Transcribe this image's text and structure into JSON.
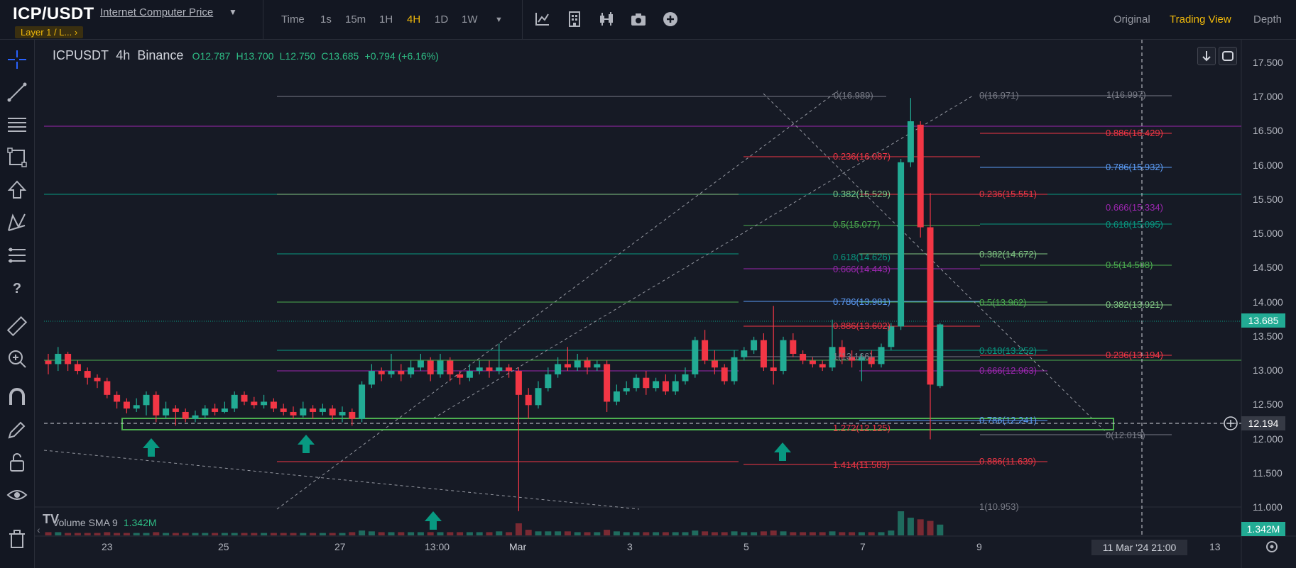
{
  "header": {
    "pair": "ICP/USDT",
    "subtitle": "Internet Computer Price",
    "badge": "Layer 1 / L...",
    "badge_chevron": "›",
    "timeframe_label": "Time",
    "timeframes": [
      "1s",
      "15m",
      "1H",
      "4H",
      "1D",
      "1W"
    ],
    "active_timeframe": "4H",
    "tools": [
      "indicators-icon",
      "templates-icon",
      "chart-type-icon",
      "camera-icon",
      "add-icon"
    ],
    "views": [
      "Original",
      "Trading View",
      "Depth"
    ],
    "active_view": "Trading View"
  },
  "legend": {
    "symbol": "ICPUSDT",
    "interval": "4h",
    "exchange": "Binance",
    "open": "O12.787",
    "high": "H13.700",
    "low": "L12.750",
    "close": "C13.685",
    "change": "+0.794 (+6.16%)"
  },
  "volume": {
    "label": "Volume SMA 9",
    "value": "1.342M"
  },
  "price_axis": {
    "ticks": [
      "17.500",
      "17.000",
      "16.500",
      "16.000",
      "15.500",
      "15.000",
      "14.500",
      "14.000",
      "13.500",
      "13.000",
      "12.500",
      "12.000",
      "11.500",
      "11.000"
    ],
    "last_price": "13.685",
    "crosshair_price": "12.194",
    "volume_tag": "1.342M"
  },
  "time_axis": {
    "ticks": [
      "23",
      "25",
      "27",
      "13:00",
      "Mar",
      "3",
      "5",
      "7",
      "9",
      "11",
      "13"
    ],
    "crosshair_time": "11 Mar '24   21:00"
  },
  "fib_labels": [
    {
      "text": "0(16.989)",
      "color": "#787b86"
    },
    {
      "text": "0(16.971)",
      "color": "#787b86"
    },
    {
      "text": "1(16.997)",
      "color": "#787b86"
    },
    {
      "text": "0.886(16.429)",
      "color": "#f23645"
    },
    {
      "text": "0.236(16.087)",
      "color": "#f23645"
    },
    {
      "text": "0.786(15.932)",
      "color": "#5b9cf6"
    },
    {
      "text": "0.382(15.529)",
      "color": "#81c784"
    },
    {
      "text": "0.236(15.551)",
      "color": "#f23645"
    },
    {
      "text": "0.666(15.334)",
      "color": "#9c27b0"
    },
    {
      "text": "0.5(15.077)",
      "color": "#4caf50"
    },
    {
      "text": "0.618(15.095)",
      "color": "#089981"
    },
    {
      "text": "0.382(14.672)",
      "color": "#81c784"
    },
    {
      "text": "0.618(14.626)",
      "color": "#089981"
    },
    {
      "text": "0.5(14.508)",
      "color": "#4caf50"
    },
    {
      "text": "0.666(14.443)",
      "color": "#9c27b0"
    },
    {
      "text": "0.786(13.981)",
      "color": "#5b9cf6"
    },
    {
      "text": "0.5(13.962)",
      "color": "#4caf50"
    },
    {
      "text": "0.382(13.921)",
      "color": "#81c784"
    },
    {
      "text": "0.886(13.602)",
      "color": "#f23645"
    },
    {
      "text": "0.618(13.252)",
      "color": "#089981"
    },
    {
      "text": "0.236(13.194)",
      "color": "#f23645"
    },
    {
      "text": "1(13.166)",
      "color": "#787b86"
    },
    {
      "text": "0.666(12.963)",
      "color": "#9c27b0"
    },
    {
      "text": "0.786(12.241)",
      "color": "#5b9cf6"
    },
    {
      "text": "1.272(12.125)",
      "color": "#f23645"
    },
    {
      "text": "0(12.019)",
      "color": "#787b86"
    },
    {
      "text": "0.886(11.639)",
      "color": "#f23645"
    },
    {
      "text": "1.414(11.583)",
      "color": "#f23645"
    },
    {
      "text": "1(10.953)",
      "color": "#787b86"
    }
  ],
  "colors": {
    "up": "#22ab94",
    "down": "#f23645",
    "zone": "#4caf50",
    "arrow": "#089981",
    "accent": "#f0b90b"
  },
  "chart_data": {
    "type": "candlestick",
    "symbol": "ICPUSDT",
    "interval": "4h",
    "price_range": [
      10.95,
      17.55
    ],
    "candles": [
      [
        13.15,
        13.1,
        13.25,
        12.95
      ],
      [
        13.1,
        13.25,
        13.35,
        13.0
      ],
      [
        13.25,
        13.1,
        13.28,
        13.0
      ],
      [
        13.1,
        13.0,
        13.15,
        12.95
      ],
      [
        13.0,
        12.9,
        13.05,
        12.8
      ],
      [
        12.9,
        12.85,
        12.95,
        12.75
      ],
      [
        12.85,
        12.65,
        12.9,
        12.6
      ],
      [
        12.65,
        12.55,
        12.7,
        12.45
      ],
      [
        12.55,
        12.45,
        12.6,
        12.38
      ],
      [
        12.45,
        12.5,
        12.6,
        12.4
      ],
      [
        12.5,
        12.65,
        12.7,
        12.35
      ],
      [
        12.65,
        12.35,
        12.7,
        12.25
      ],
      [
        12.35,
        12.45,
        12.55,
        12.3
      ],
      [
        12.45,
        12.4,
        12.5,
        12.2
      ],
      [
        12.4,
        12.3,
        12.45,
        12.25
      ],
      [
        12.3,
        12.35,
        12.42,
        12.25
      ],
      [
        12.35,
        12.45,
        12.5,
        12.3
      ],
      [
        12.45,
        12.4,
        12.52,
        12.35
      ],
      [
        12.4,
        12.45,
        12.55,
        12.38
      ],
      [
        12.45,
        12.65,
        12.7,
        12.4
      ],
      [
        12.65,
        12.55,
        12.7,
        12.5
      ],
      [
        12.55,
        12.5,
        12.62,
        12.45
      ],
      [
        12.5,
        12.55,
        12.65,
        12.45
      ],
      [
        12.55,
        12.45,
        12.6,
        12.4
      ],
      [
        12.45,
        12.4,
        12.52,
        12.35
      ],
      [
        12.4,
        12.35,
        12.48,
        12.3
      ],
      [
        12.35,
        12.45,
        12.55,
        12.32
      ],
      [
        12.45,
        12.4,
        12.5,
        12.3
      ],
      [
        12.4,
        12.45,
        12.52,
        12.35
      ],
      [
        12.45,
        12.35,
        12.5,
        12.28
      ],
      [
        12.35,
        12.4,
        12.48,
        12.25
      ],
      [
        12.4,
        12.3,
        12.45,
        12.2
      ],
      [
        12.3,
        12.8,
        12.85,
        12.25
      ],
      [
        12.8,
        13.0,
        13.1,
        12.75
      ],
      [
        13.0,
        12.95,
        13.05,
        12.85
      ],
      [
        12.95,
        13.0,
        13.25,
        12.9
      ],
      [
        13.0,
        12.95,
        13.1,
        12.85
      ],
      [
        12.95,
        13.05,
        13.15,
        12.9
      ],
      [
        13.05,
        13.15,
        13.25,
        13.0
      ],
      [
        13.15,
        12.95,
        13.2,
        12.85
      ],
      [
        12.95,
        13.15,
        13.25,
        12.9
      ],
      [
        13.15,
        12.95,
        13.2,
        12.85
      ],
      [
        12.95,
        12.9,
        13.0,
        12.8
      ],
      [
        12.9,
        13.0,
        13.1,
        12.85
      ],
      [
        13.0,
        13.05,
        13.15,
        12.95
      ],
      [
        13.05,
        13.0,
        13.15,
        12.9
      ],
      [
        13.0,
        13.05,
        13.4,
        12.95
      ],
      [
        13.05,
        13.0,
        13.1,
        12.9
      ],
      [
        13.0,
        12.65,
        13.05,
        10.95
      ],
      [
        12.65,
        12.5,
        12.75,
        12.3
      ],
      [
        12.5,
        12.75,
        12.85,
        12.45
      ],
      [
        12.75,
        12.95,
        13.05,
        12.7
      ],
      [
        12.95,
        13.1,
        13.2,
        12.9
      ],
      [
        13.1,
        13.05,
        13.35,
        13.0
      ],
      [
        13.05,
        13.15,
        13.25,
        13.0
      ],
      [
        13.15,
        13.05,
        13.2,
        12.95
      ],
      [
        13.05,
        13.1,
        13.15,
        13.0
      ],
      [
        13.1,
        12.55,
        13.15,
        12.4
      ],
      [
        12.55,
        12.7,
        12.8,
        12.5
      ],
      [
        12.7,
        12.75,
        12.85,
        12.65
      ],
      [
        12.75,
        12.9,
        12.95,
        12.7
      ],
      [
        12.9,
        12.75,
        13.0,
        12.65
      ],
      [
        12.75,
        12.85,
        12.9,
        12.7
      ],
      [
        12.85,
        12.7,
        12.95,
        12.65
      ],
      [
        12.7,
        12.85,
        12.95,
        12.65
      ],
      [
        12.85,
        12.95,
        13.05,
        12.8
      ],
      [
        12.95,
        13.45,
        13.5,
        12.9
      ],
      [
        13.45,
        13.15,
        13.6,
        13.1
      ],
      [
        13.15,
        13.05,
        13.3,
        12.95
      ],
      [
        13.05,
        12.85,
        13.1,
        12.8
      ],
      [
        12.85,
        13.2,
        13.3,
        12.8
      ],
      [
        13.2,
        13.3,
        13.35,
        13.15
      ],
      [
        13.3,
        13.45,
        13.5,
        13.25
      ],
      [
        13.45,
        13.05,
        13.55,
        13.0
      ],
      [
        13.05,
        13.0,
        13.95,
        12.8
      ],
      [
        13.0,
        13.45,
        13.5,
        12.95
      ],
      [
        13.45,
        13.25,
        13.55,
        13.2
      ],
      [
        13.25,
        13.15,
        13.3,
        13.1
      ],
      [
        13.15,
        13.1,
        13.2,
        13.05
      ],
      [
        13.1,
        13.05,
        13.15,
        13.0
      ],
      [
        13.05,
        13.35,
        13.75,
        13.0
      ],
      [
        13.35,
        13.2,
        13.45,
        13.1
      ],
      [
        13.2,
        13.15,
        13.3,
        13.05
      ],
      [
        13.15,
        13.2,
        13.25,
        12.85
      ],
      [
        13.2,
        13.1,
        13.3,
        13.05
      ],
      [
        13.1,
        13.35,
        13.4,
        13.05
      ],
      [
        13.35,
        13.65,
        13.7,
        13.3
      ],
      [
        13.65,
        16.05,
        16.1,
        13.6
      ],
      [
        16.05,
        16.65,
        16.99,
        15.98
      ],
      [
        16.6,
        15.1,
        16.65,
        14.95
      ],
      [
        15.1,
        12.8,
        15.6,
        12.0
      ],
      [
        12.78,
        13.68,
        13.7,
        12.75
      ]
    ],
    "volume": [
      0.4,
      0.4,
      0.3,
      0.3,
      0.3,
      0.3,
      0.4,
      0.3,
      0.3,
      0.3,
      0.3,
      0.4,
      0.3,
      0.3,
      0.3,
      0.3,
      0.3,
      0.3,
      0.3,
      0.3,
      0.3,
      0.3,
      0.3,
      0.3,
      0.3,
      0.3,
      0.3,
      0.3,
      0.3,
      0.3,
      0.3,
      0.4,
      0.6,
      0.5,
      0.4,
      0.4,
      0.4,
      0.4,
      0.4,
      0.4,
      0.4,
      0.4,
      0.4,
      0.4,
      0.4,
      0.4,
      0.5,
      0.4,
      1.5,
      0.7,
      0.5,
      0.5,
      0.5,
      0.5,
      0.4,
      0.4,
      0.4,
      0.7,
      0.5,
      0.4,
      0.4,
      0.4,
      0.4,
      0.4,
      0.4,
      0.4,
      0.6,
      0.5,
      0.4,
      0.4,
      0.5,
      0.4,
      0.4,
      0.5,
      0.6,
      0.5,
      0.4,
      0.4,
      0.4,
      0.4,
      0.5,
      0.4,
      0.4,
      0.4,
      0.4,
      0.4,
      0.6,
      3.0,
      2.2,
      2.0,
      1.8,
      1.342
    ],
    "volume_max": 3.0,
    "support_zone": [
      12.1,
      12.25
    ],
    "last_price": 13.685,
    "crosshair_price": 12.194
  }
}
